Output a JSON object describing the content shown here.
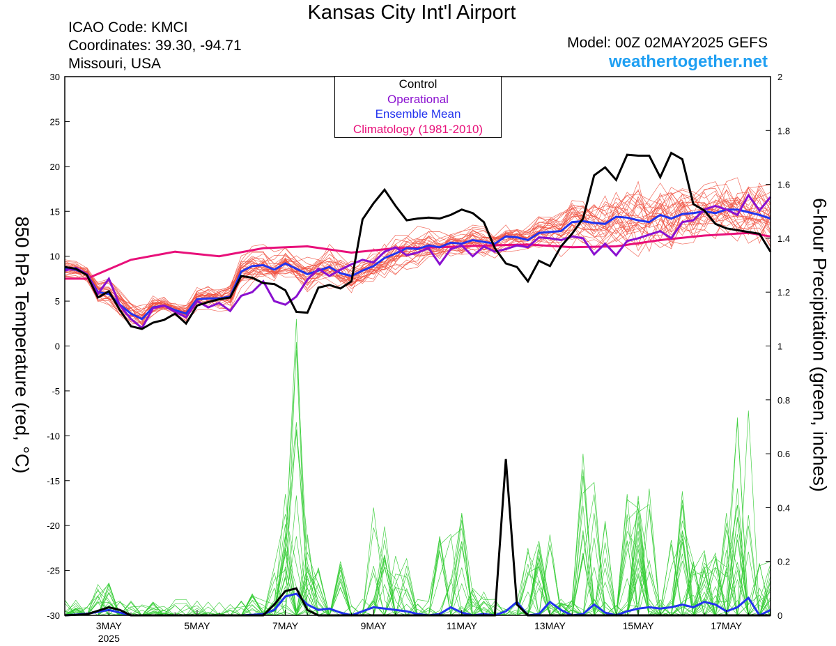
{
  "header": {
    "title": "Kansas City Int'l Airport",
    "icao": "ICAO Code: KMCI",
    "coordinates": "Coordinates: 39.30, -94.71",
    "location": "Missouri, USA",
    "model": "Model: 00Z 02MAY2025 GEFS",
    "site": "weathertogether.net"
  },
  "legend": {
    "items": [
      {
        "label": "Control",
        "color": "#000000"
      },
      {
        "label": "Operational",
        "color": "#8a10d0"
      },
      {
        "label": "Ensemble Mean",
        "color": "#2233ee"
      },
      {
        "label": "Climatology (1981-2010)",
        "color": "#e8107a"
      }
    ]
  },
  "chart_data": {
    "type": "line",
    "y_left_label": "850 hPa Temperature (red, °C)",
    "y_right_label": "6-hour Precipitation (green, inches)",
    "y_left_range": [
      -30,
      30
    ],
    "y_left_ticks": [
      "30",
      "25",
      "20",
      "15",
      "10",
      "5",
      "0",
      "-5",
      "-10",
      "-15",
      "-20",
      "-25",
      "-30"
    ],
    "y_right_range": [
      0,
      2
    ],
    "y_right_ticks": [
      "2",
      "1.8",
      "1.6",
      "1.4",
      "1.2",
      "1",
      "0.8",
      "0.6",
      "0.4",
      "0.2",
      "0"
    ],
    "x_range_days": [
      0,
      16
    ],
    "x_ticks": [
      {
        "day": 1,
        "label": "3MAY",
        "sub": "2025"
      },
      {
        "day": 3,
        "label": "5MAY",
        "sub": ""
      },
      {
        "day": 5,
        "label": "7MAY",
        "sub": ""
      },
      {
        "day": 7,
        "label": "9MAY",
        "sub": ""
      },
      {
        "day": 9,
        "label": "11MAY",
        "sub": ""
      },
      {
        "day": 11,
        "label": "13MAY",
        "sub": ""
      },
      {
        "day": 13,
        "label": "15MAY",
        "sub": ""
      },
      {
        "day": 15,
        "label": "17MAY",
        "sub": ""
      }
    ],
    "temperature": {
      "climatology": {
        "color": "#e8107a",
        "x": [
          0,
          0.5,
          1.5,
          2.5,
          3.5,
          4.5,
          5.5,
          6.5,
          7.5,
          8.5,
          9.5,
          10.5,
          11.5,
          12.5,
          13.5,
          14.5,
          15.5,
          16
        ],
        "y": [
          7.5,
          7.5,
          9.6,
          10.5,
          10.0,
          10.9,
          11.1,
          10.4,
          10.9,
          11.0,
          11.2,
          11.3,
          11.0,
          11.1,
          11.8,
          12.3,
          12.6,
          12.2
        ]
      },
      "control": {
        "color": "#000000",
        "x": [
          0,
          0.25,
          0.5,
          0.75,
          1.0,
          1.25,
          1.5,
          1.75,
          2.0,
          2.25,
          2.5,
          2.75,
          3.0,
          3.25,
          3.5,
          3.75,
          4.0,
          4.25,
          4.5,
          4.75,
          5.0,
          5.25,
          5.5,
          5.75,
          6.0,
          6.25,
          6.5,
          6.75,
          7.0,
          7.25,
          7.5,
          7.75,
          8.0,
          8.25,
          8.5,
          8.75,
          9.0,
          9.25,
          9.5,
          9.75,
          10.0,
          10.25,
          10.5,
          10.75,
          11.0,
          11.25,
          11.5,
          11.75,
          12.0,
          12.25,
          12.5,
          12.75,
          13.0,
          13.25,
          13.5,
          13.75,
          14.0,
          14.25,
          14.5,
          14.75,
          15.0,
          15.25,
          15.5,
          15.75,
          16.0
        ],
        "y": [
          8.8,
          8.6,
          7.9,
          5.4,
          6.1,
          4.0,
          2.2,
          1.9,
          2.6,
          2.9,
          3.6,
          2.5,
          4.5,
          4.9,
          5.2,
          5.4,
          7.8,
          7.6,
          7.0,
          6.9,
          6.2,
          3.8,
          3.7,
          6.5,
          6.8,
          6.4,
          7.2,
          14.1,
          15.9,
          17.4,
          15.6,
          14.0,
          14.2,
          14.3,
          14.2,
          14.6,
          15.2,
          14.8,
          13.8,
          10.9,
          9.2,
          8.8,
          7.2,
          9.5,
          8.9,
          11.1,
          12.5,
          14.2,
          19.0,
          19.9,
          18.5,
          21.3,
          21.2,
          21.2,
          18.8,
          21.5,
          20.8,
          15.8,
          15.1,
          13.6,
          13.1,
          12.9,
          12.7,
          12.5,
          10.5
        ]
      },
      "operational": {
        "color": "#8a10d0",
        "x": [
          0,
          0.25,
          0.5,
          0.75,
          1.0,
          1.25,
          1.5,
          1.75,
          2.0,
          2.25,
          2.5,
          2.75,
          3.0,
          3.25,
          3.5,
          3.75,
          4.0,
          4.25,
          4.5,
          4.75,
          5.0,
          5.25,
          5.5,
          5.75,
          6.0,
          6.25,
          6.5,
          6.75,
          7.0,
          7.25,
          7.5,
          7.75,
          8.0,
          8.25,
          8.5,
          8.75,
          9.0,
          9.25,
          9.5,
          9.75,
          10.0,
          10.25,
          10.5,
          10.75,
          11.0,
          11.25,
          11.5,
          11.75,
          12.0,
          12.25,
          12.5,
          12.75,
          13.0,
          13.25,
          13.5,
          13.75,
          14.0,
          14.25,
          14.5,
          14.75,
          15.0,
          15.25,
          15.5,
          15.75,
          16.0
        ],
        "y": [
          8.4,
          8.7,
          8.0,
          5.8,
          7.5,
          4.5,
          3.0,
          2.0,
          4.2,
          4.5,
          3.8,
          3.2,
          5.0,
          4.3,
          4.8,
          3.9,
          5.6,
          6.0,
          7.2,
          5.0,
          4.6,
          5.5,
          7.4,
          8.6,
          7.8,
          8.5,
          9.1,
          9.6,
          9.3,
          10.5,
          11.0,
          10.1,
          10.4,
          10.9,
          9.1,
          10.8,
          11.2,
          10.0,
          11.1,
          10.5,
          10.8,
          11.2,
          11.0,
          12.1,
          12.0,
          11.8,
          12.2,
          12.0,
          10.2,
          11.4,
          10.1,
          11.7,
          12.0,
          12.4,
          12.8,
          12.0,
          13.8,
          14.0,
          15.2,
          15.6,
          15.2,
          14.6,
          16.8,
          15.1,
          16.6
        ]
      },
      "ensemble_mean": {
        "color": "#2233ee",
        "x": [
          0,
          0.25,
          0.5,
          0.75,
          1.0,
          1.25,
          1.5,
          1.75,
          2.0,
          2.25,
          2.5,
          2.75,
          3.0,
          3.25,
          3.5,
          3.75,
          4.0,
          4.25,
          4.5,
          4.75,
          5.0,
          5.25,
          5.5,
          5.75,
          6.0,
          6.25,
          6.5,
          6.75,
          7.0,
          7.25,
          7.5,
          7.75,
          8.0,
          8.25,
          8.5,
          8.75,
          9.0,
          9.25,
          9.5,
          9.75,
          10.0,
          10.25,
          10.5,
          10.75,
          11.0,
          11.25,
          11.5,
          11.75,
          12.0,
          12.25,
          12.5,
          12.75,
          13.0,
          13.25,
          13.5,
          13.75,
          14.0,
          14.25,
          14.5,
          14.75,
          15.0,
          15.25,
          15.5,
          15.75,
          16.0
        ],
        "y": [
          8.6,
          8.5,
          8.0,
          6.0,
          5.8,
          4.6,
          3.6,
          3.0,
          4.3,
          4.5,
          4.0,
          3.6,
          5.2,
          5.3,
          5.3,
          5.5,
          8.3,
          8.9,
          9.0,
          8.5,
          9.2,
          8.6,
          8.0,
          8.4,
          8.8,
          8.1,
          7.8,
          8.4,
          8.9,
          9.8,
          10.3,
          10.9,
          10.8,
          11.2,
          11.0,
          11.5,
          11.4,
          11.8,
          11.6,
          11.4,
          12.2,
          12.1,
          11.8,
          12.6,
          12.7,
          12.8,
          13.8,
          13.9,
          13.7,
          13.6,
          14.4,
          14.3,
          14.0,
          13.8,
          14.6,
          14.2,
          14.7,
          14.8,
          15.0,
          14.8,
          15.2,
          15.2,
          14.9,
          14.6,
          14.2
        ]
      },
      "members_color": "#f05040",
      "members_count": 30,
      "members_spread_x": [
        0,
        0.5,
        1,
        1.5,
        2,
        2.5,
        3,
        3.5,
        4,
        4.5,
        5,
        5.5,
        6,
        6.5,
        7,
        7.5,
        8,
        8.5,
        9,
        9.5,
        10,
        10.5,
        11,
        11.5,
        12,
        12.5,
        13,
        13.5,
        14,
        14.5,
        15,
        15.5,
        16
      ],
      "members_spread": [
        0.8,
        0.8,
        1.6,
        1.6,
        1.3,
        1.0,
        1.2,
        1.3,
        1.8,
        1.9,
        1.7,
        1.8,
        2.0,
        2.1,
        2.0,
        2.2,
        2.1,
        1.6,
        1.4,
        1.5,
        1.3,
        1.4,
        1.8,
        2.4,
        3.0,
        3.4,
        3.8,
        3.9,
        3.6,
        3.2,
        3.6,
        4.0,
        4.2
      ]
    },
    "precipitation": {
      "members_color": "#33cc33",
      "members_count": 30,
      "control": {
        "color": "#000000",
        "x": [
          0,
          0.5,
          1.0,
          1.25,
          1.5,
          2.0,
          4.5,
          4.75,
          5.0,
          5.25,
          5.5,
          5.75,
          7.0,
          7.5,
          8.0,
          8.5,
          9.0,
          9.25,
          9.5,
          9.75,
          10.0,
          10.25,
          10.5,
          11.0,
          11.5,
          12.0,
          12.5,
          13.0,
          14.0,
          15.0,
          16.0
        ],
        "y": [
          0.0,
          0.004,
          0.03,
          0.02,
          0.0,
          0.0,
          0.0,
          0.04,
          0.09,
          0.1,
          0.02,
          0.0,
          0.0,
          0.0,
          0.0,
          0.0,
          0.0,
          0.0,
          0.0,
          0.0,
          0.58,
          0.04,
          0.0,
          0.0,
          0.0,
          0.0,
          0.0,
          0.0,
          0.0,
          0.0,
          0.0
        ]
      },
      "ensemble_mean": {
        "color": "#2233ee",
        "x": [
          0,
          0.5,
          1.0,
          1.25,
          1.5,
          2.0,
          2.5,
          3.0,
          3.5,
          4.0,
          4.25,
          4.5,
          4.75,
          5.0,
          5.25,
          5.5,
          5.75,
          6.0,
          6.25,
          6.5,
          7.0,
          7.25,
          7.5,
          7.75,
          8.0,
          8.25,
          8.5,
          8.75,
          9.0,
          9.25,
          9.5,
          9.75,
          10.0,
          10.25,
          10.5,
          10.75,
          11.0,
          11.25,
          11.5,
          11.75,
          12.0,
          12.25,
          12.5,
          12.75,
          13.0,
          13.25,
          13.5,
          13.75,
          14.0,
          14.25,
          14.5,
          14.75,
          15.0,
          15.25,
          15.5,
          15.75,
          16.0
        ],
        "y": [
          0.0,
          0.006,
          0.02,
          0.01,
          0.0,
          0.0,
          0.0,
          0.0,
          0.0,
          0.0,
          0.002,
          0.005,
          0.02,
          0.07,
          0.08,
          0.04,
          0.02,
          0.025,
          0.01,
          0.0,
          0.03,
          0.025,
          0.02,
          0.015,
          0.005,
          0.0,
          0.005,
          0.03,
          0.01,
          0.0,
          0.005,
          0.0,
          0.015,
          0.05,
          0.0,
          0.005,
          0.05,
          0.02,
          0.0,
          0.005,
          0.04,
          0.01,
          0.0,
          0.015,
          0.025,
          0.03,
          0.025,
          0.03,
          0.04,
          0.03,
          0.05,
          0.04,
          0.015,
          0.03,
          0.065,
          0.0,
          0.02
        ]
      },
      "spikes": [
        {
          "x": 0.4,
          "y": 0.03
        },
        {
          "x": 0.9,
          "y": 0.12
        },
        {
          "x": 1.0,
          "y": 0.05
        },
        {
          "x": 2.1,
          "y": 0.02
        },
        {
          "x": 4.2,
          "y": 0.08
        },
        {
          "x": 4.9,
          "y": 0.25
        },
        {
          "x": 5.0,
          "y": 0.45
        },
        {
          "x": 5.2,
          "y": 1.1
        },
        {
          "x": 5.4,
          "y": 0.3
        },
        {
          "x": 5.6,
          "y": 0.18
        },
        {
          "x": 6.2,
          "y": 0.2
        },
        {
          "x": 7.0,
          "y": 0.4
        },
        {
          "x": 7.2,
          "y": 0.33
        },
        {
          "x": 7.6,
          "y": 0.22
        },
        {
          "x": 8.7,
          "y": 0.3
        },
        {
          "x": 9.0,
          "y": 0.38
        },
        {
          "x": 9.3,
          "y": 0.1
        },
        {
          "x": 10.6,
          "y": 0.25
        },
        {
          "x": 10.9,
          "y": 0.3
        },
        {
          "x": 11.3,
          "y": 0.06
        },
        {
          "x": 11.8,
          "y": 0.6
        },
        {
          "x": 12.2,
          "y": 0.35
        },
        {
          "x": 12.8,
          "y": 0.45
        },
        {
          "x": 13.2,
          "y": 0.47
        },
        {
          "x": 13.9,
          "y": 0.46
        },
        {
          "x": 14.3,
          "y": 0.2
        },
        {
          "x": 14.6,
          "y": 0.24
        },
        {
          "x": 15.1,
          "y": 0.38
        },
        {
          "x": 15.4,
          "y": 0.76
        },
        {
          "x": 15.9,
          "y": 0.2
        }
      ]
    }
  }
}
